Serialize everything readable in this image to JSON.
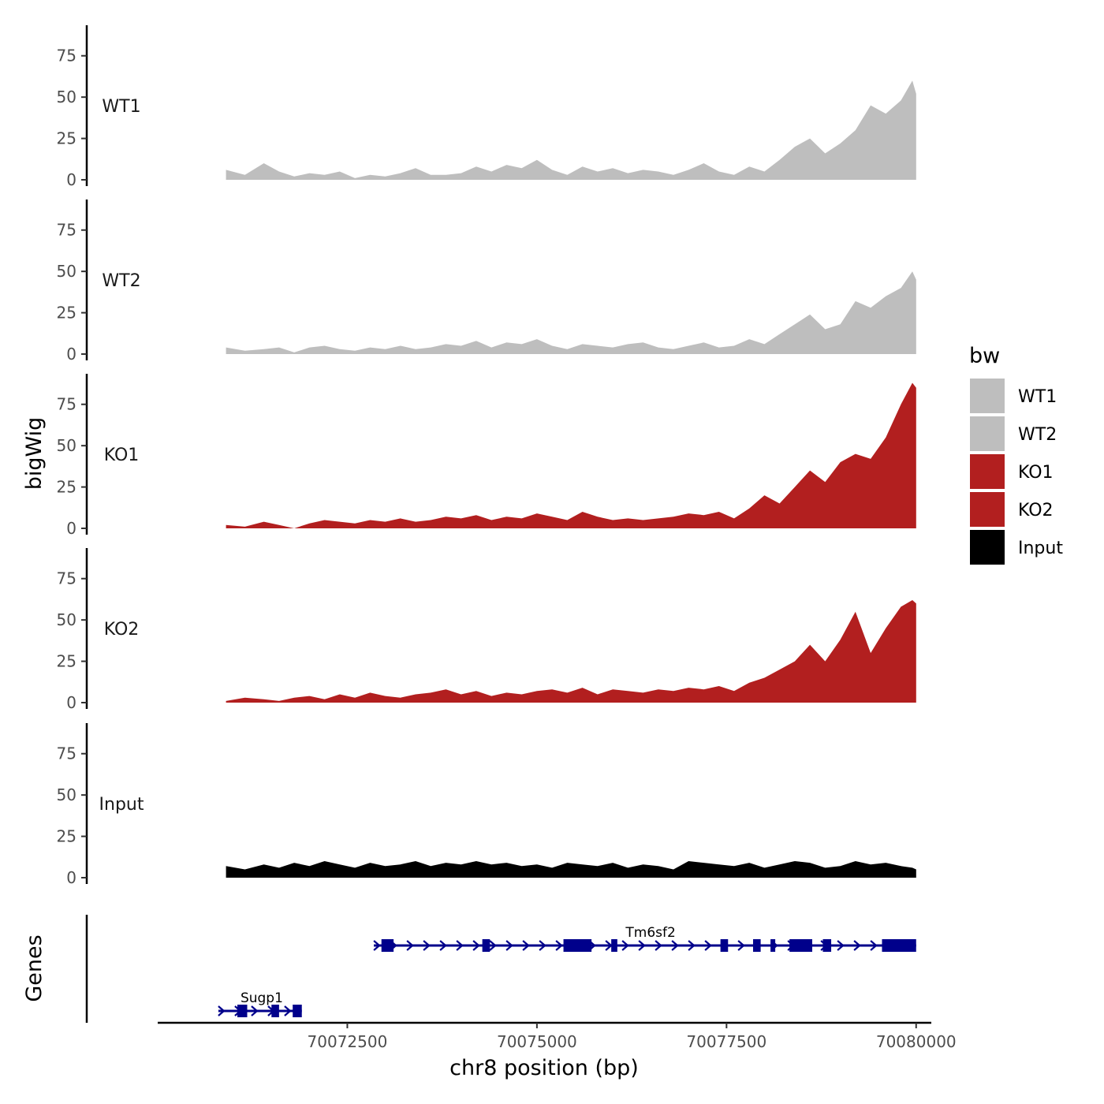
{
  "chart_data": {
    "type": "area",
    "y_axis_title": "bigWig",
    "x_axis_title": "chr8 position (bp)",
    "xlim": [
      70070000,
      70080200
    ],
    "ylim": [
      0,
      93
    ],
    "y_ticks": [
      0,
      25,
      50,
      75
    ],
    "y_tick_labels": [
      "0",
      "25",
      "50",
      "75"
    ],
    "x_ticks": [
      70072500,
      70075000,
      70077500,
      70080000
    ],
    "x_tick_labels": [
      "70072500",
      "70075000",
      "70077500",
      "70080000"
    ],
    "series": [
      {
        "name": "WT1",
        "color": "#bebebe",
        "x": [
          70070900,
          70071150,
          70071400,
          70071600,
          70071800,
          70072000,
          70072200,
          70072400,
          70072600,
          70072800,
          70073000,
          70073200,
          70073400,
          70073600,
          70073800,
          70074000,
          70074200,
          70074400,
          70074600,
          70074800,
          70075000,
          70075200,
          70075400,
          70075600,
          70075800,
          70076000,
          70076200,
          70076400,
          70076600,
          70076800,
          70077000,
          70077200,
          70077400,
          70077600,
          70077800,
          70078000,
          70078200,
          70078400,
          70078600,
          70078800,
          70079000,
          70079200,
          70079400,
          70079600,
          70079800,
          70079950,
          70080000
        ],
        "values": [
          6,
          3,
          10,
          5,
          2,
          4,
          3,
          5,
          1,
          3,
          2,
          4,
          7,
          3,
          3,
          4,
          8,
          5,
          9,
          7,
          12,
          6,
          3,
          8,
          5,
          7,
          4,
          6,
          5,
          3,
          6,
          10,
          5,
          3,
          8,
          5,
          12,
          20,
          25,
          16,
          22,
          30,
          45,
          40,
          48,
          60,
          52
        ]
      },
      {
        "name": "WT2",
        "color": "#bebebe",
        "x": [
          70070900,
          70071150,
          70071400,
          70071600,
          70071800,
          70072000,
          70072200,
          70072400,
          70072600,
          70072800,
          70073000,
          70073200,
          70073400,
          70073600,
          70073800,
          70074000,
          70074200,
          70074400,
          70074600,
          70074800,
          70075000,
          70075200,
          70075400,
          70075600,
          70075800,
          70076000,
          70076200,
          70076400,
          70076600,
          70076800,
          70077000,
          70077200,
          70077400,
          70077600,
          70077800,
          70078000,
          70078200,
          70078400,
          70078600,
          70078800,
          70079000,
          70079200,
          70079400,
          70079600,
          70079800,
          70079950,
          70080000
        ],
        "values": [
          4,
          2,
          3,
          4,
          1,
          4,
          5,
          3,
          2,
          4,
          3,
          5,
          3,
          4,
          6,
          5,
          8,
          4,
          7,
          6,
          9,
          5,
          3,
          6,
          5,
          4,
          6,
          7,
          4,
          3,
          5,
          7,
          4,
          5,
          9,
          6,
          12,
          18,
          24,
          15,
          18,
          32,
          28,
          35,
          40,
          50,
          45
        ]
      },
      {
        "name": "KO1",
        "color": "#b21f1f",
        "x": [
          70070900,
          70071150,
          70071400,
          70071600,
          70071800,
          70072000,
          70072200,
          70072400,
          70072600,
          70072800,
          70073000,
          70073200,
          70073400,
          70073600,
          70073800,
          70074000,
          70074200,
          70074400,
          70074600,
          70074800,
          70075000,
          70075200,
          70075400,
          70075600,
          70075800,
          70076000,
          70076200,
          70076400,
          70076600,
          70076800,
          70077000,
          70077200,
          70077400,
          70077600,
          70077800,
          70078000,
          70078200,
          70078400,
          70078600,
          70078800,
          70079000,
          70079200,
          70079400,
          70079600,
          70079800,
          70079950,
          70080000
        ],
        "values": [
          2,
          1,
          4,
          2,
          0,
          3,
          5,
          4,
          3,
          5,
          4,
          6,
          4,
          5,
          7,
          6,
          8,
          5,
          7,
          6,
          9,
          7,
          5,
          10,
          7,
          5,
          6,
          5,
          6,
          7,
          9,
          8,
          10,
          6,
          12,
          20,
          15,
          25,
          35,
          28,
          40,
          45,
          42,
          55,
          75,
          88,
          85
        ]
      },
      {
        "name": "KO2",
        "color": "#b21f1f",
        "x": [
          70070900,
          70071150,
          70071400,
          70071600,
          70071800,
          70072000,
          70072200,
          70072400,
          70072600,
          70072800,
          70073000,
          70073200,
          70073400,
          70073600,
          70073800,
          70074000,
          70074200,
          70074400,
          70074600,
          70074800,
          70075000,
          70075200,
          70075400,
          70075600,
          70075800,
          70076000,
          70076200,
          70076400,
          70076600,
          70076800,
          70077000,
          70077200,
          70077400,
          70077600,
          70077800,
          70078000,
          70078200,
          70078400,
          70078600,
          70078800,
          70079000,
          70079200,
          70079400,
          70079600,
          70079800,
          70079950,
          70080000
        ],
        "values": [
          1,
          3,
          2,
          1,
          3,
          4,
          2,
          5,
          3,
          6,
          4,
          3,
          5,
          6,
          8,
          5,
          7,
          4,
          6,
          5,
          7,
          8,
          6,
          9,
          5,
          8,
          7,
          6,
          8,
          7,
          9,
          8,
          10,
          7,
          12,
          15,
          20,
          25,
          35,
          25,
          38,
          55,
          30,
          45,
          58,
          62,
          60
        ]
      },
      {
        "name": "Input",
        "color": "#000000",
        "x": [
          70070900,
          70071150,
          70071400,
          70071600,
          70071800,
          70072000,
          70072200,
          70072400,
          70072600,
          70072800,
          70073000,
          70073200,
          70073400,
          70073600,
          70073800,
          70074000,
          70074200,
          70074400,
          70074600,
          70074800,
          70075000,
          70075200,
          70075400,
          70075600,
          70075800,
          70076000,
          70076200,
          70076400,
          70076600,
          70076800,
          70077000,
          70077200,
          70077400,
          70077600,
          70077800,
          70078000,
          70078200,
          70078400,
          70078600,
          70078800,
          70079000,
          70079200,
          70079400,
          70079600,
          70079800,
          70079950,
          70080000
        ],
        "values": [
          7,
          5,
          8,
          6,
          9,
          7,
          10,
          8,
          6,
          9,
          7,
          8,
          10,
          7,
          9,
          8,
          10,
          8,
          9,
          7,
          8,
          6,
          9,
          8,
          7,
          9,
          6,
          8,
          7,
          5,
          10,
          9,
          8,
          7,
          9,
          6,
          8,
          10,
          9,
          6,
          7,
          10,
          8,
          9,
          7,
          6,
          5
        ]
      }
    ],
    "legend": {
      "title": "bw",
      "position": "right",
      "entries": [
        {
          "label": "WT1",
          "color": "#bebebe"
        },
        {
          "label": "WT2",
          "color": "#bebebe"
        },
        {
          "label": "KO1",
          "color": "#b21f1f"
        },
        {
          "label": "KO2",
          "color": "#b21f1f"
        },
        {
          "label": "Input",
          "color": "#000000"
        }
      ]
    },
    "genes_track": {
      "title": "Genes",
      "color": "#00008b",
      "genes": [
        {
          "name": "Sugp1",
          "row": 2,
          "start": 70070800,
          "end": 70071900,
          "strand": "+",
          "exons": [
            [
              70071050,
              70071180
            ],
            [
              70071500,
              70071600
            ],
            [
              70071780,
              70071900
            ]
          ]
        },
        {
          "name": "Tm6sf2",
          "row": 1,
          "start": 70072850,
          "end": 70080000,
          "strand": "+",
          "exons": [
            [
              70072950,
              70073110
            ],
            [
              70074280,
              70074380
            ],
            [
              70075350,
              70075720
            ],
            [
              70075980,
              70076060
            ],
            [
              70077420,
              70077520
            ],
            [
              70077850,
              70077950
            ],
            [
              70078080,
              70078130
            ],
            [
              70078330,
              70078630
            ],
            [
              70078770,
              70078880
            ],
            [
              70079550,
              70080000
            ]
          ]
        }
      ]
    }
  }
}
